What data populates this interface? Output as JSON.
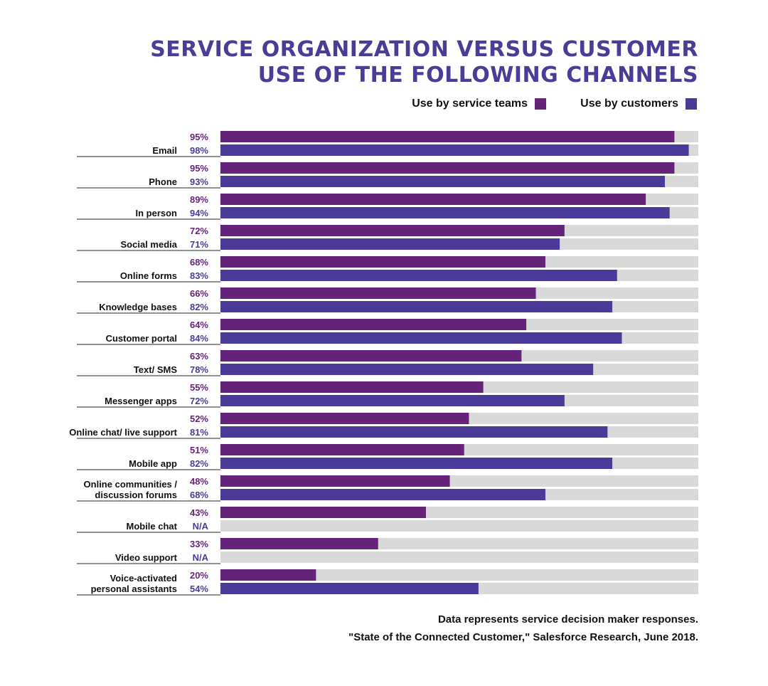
{
  "title": {
    "line1": "SERVICE ORGANIZATION VERSUS CUSTOMER",
    "line2": "USE OF THE FOLLOWING CHANNELS"
  },
  "legend": {
    "teams": "Use by service teams",
    "customers": "Use by customers"
  },
  "colors": {
    "teams": "#65237a",
    "customers": "#4b3a97",
    "track": "#d9d9d9",
    "title": "#4c3c98"
  },
  "source": {
    "note": "Data represents service decision maker responses.",
    "citation": "\"State of the Connected Customer,\" Salesforce Research, June 2018."
  },
  "chart_data": {
    "type": "bar",
    "orientation": "horizontal",
    "xlim": [
      0,
      100
    ],
    "grid": false,
    "legend_position": "top-right",
    "categories": [
      [
        "Email"
      ],
      [
        "Phone"
      ],
      [
        "In person"
      ],
      [
        "Social media"
      ],
      [
        "Online forms"
      ],
      [
        "Knowledge bases"
      ],
      [
        "Customer portal"
      ],
      [
        "Text/ SMS"
      ],
      [
        "Messenger apps"
      ],
      [
        "Online chat/ live support"
      ],
      [
        "Mobile app"
      ],
      [
        "Online communities /",
        "discussion forums"
      ],
      [
        "Mobile chat"
      ],
      [
        "Video support"
      ],
      [
        "Voice-activated",
        "personal assistants"
      ]
    ],
    "series": [
      {
        "name": "Use by service teams",
        "values": [
          95,
          95,
          89,
          72,
          68,
          66,
          64,
          63,
          55,
          52,
          51,
          48,
          43,
          33,
          20
        ],
        "labels": [
          "95%",
          "95%",
          "89%",
          "72%",
          "68%",
          "66%",
          "64%",
          "63%",
          "55%",
          "52%",
          "51%",
          "48%",
          "43%",
          "33%",
          "20%"
        ]
      },
      {
        "name": "Use by customers",
        "values": [
          98,
          93,
          94,
          71,
          83,
          82,
          84,
          78,
          72,
          81,
          82,
          68,
          null,
          null,
          54
        ],
        "labels": [
          "98%",
          "93%",
          "94%",
          "71%",
          "83%",
          "82%",
          "84%",
          "78%",
          "72%",
          "81%",
          "82%",
          "68%",
          "N/A",
          "N/A",
          "54%"
        ]
      }
    ]
  }
}
